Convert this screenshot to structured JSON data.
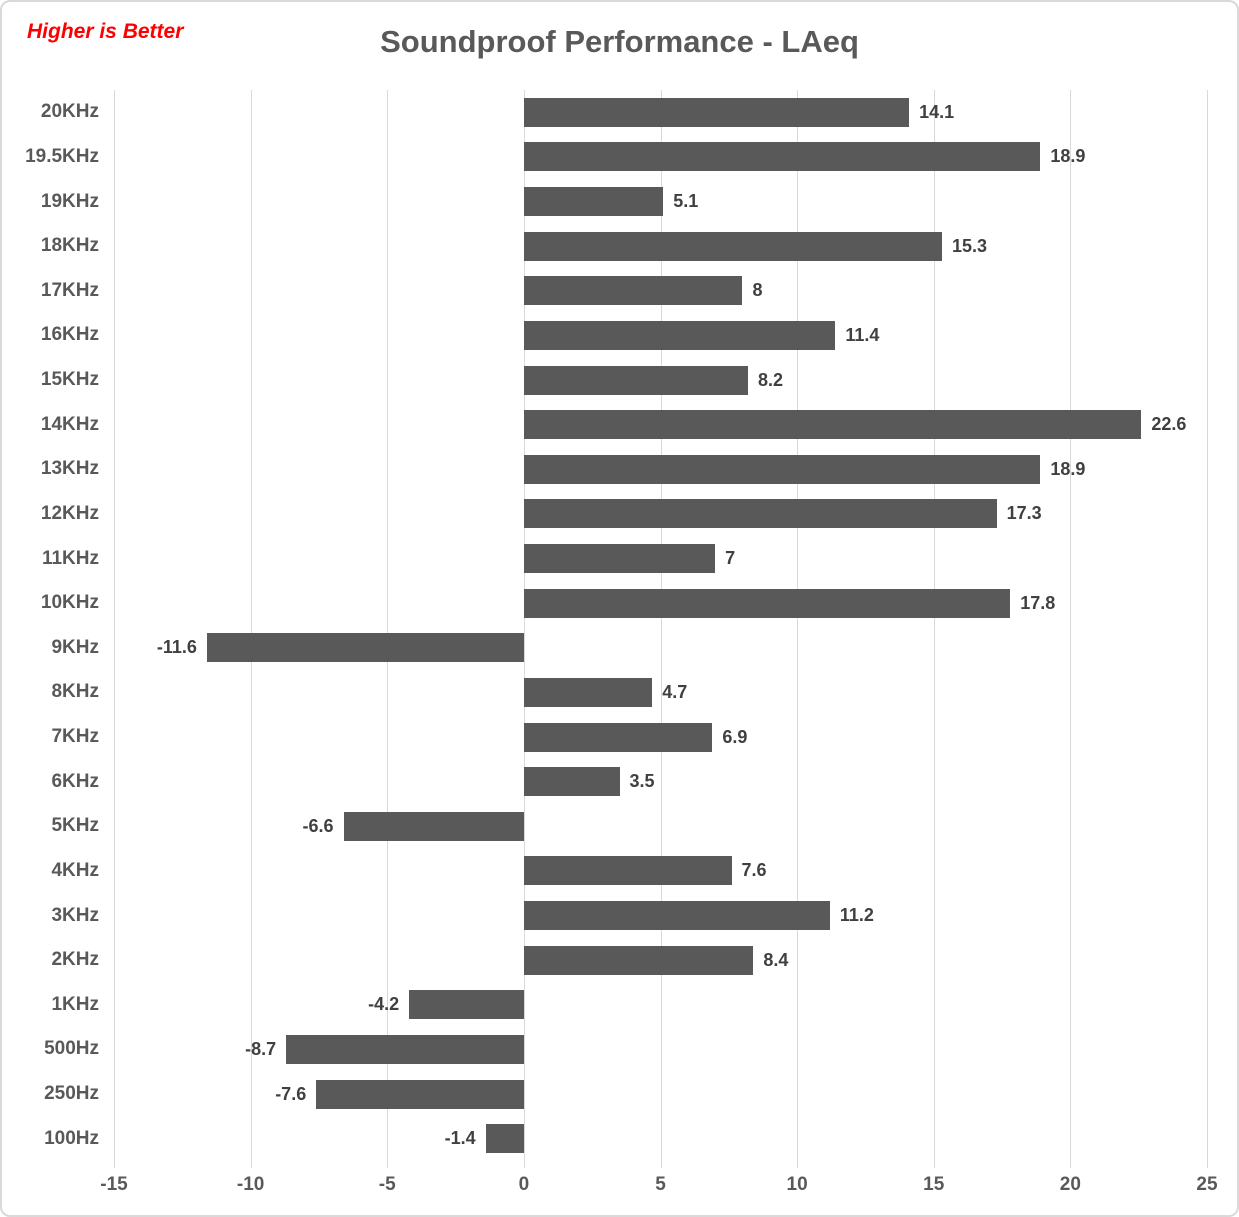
{
  "title": "Soundproof Performance - LAeq",
  "note": "Higher is Better",
  "colors": {
    "bar": "#595959",
    "gridline": "#d9d9d9",
    "title": "#595959",
    "note": "#ff0000",
    "value_label": "#404040",
    "axis_label": "#595959",
    "border": "#d9d9d9",
    "background": "#ffffff"
  },
  "chart_data": {
    "type": "bar",
    "orientation": "horizontal",
    "title": "Soundproof Performance - LAeq",
    "annotation": "Higher is Better",
    "categories": [
      "20KHz",
      "19.5KHz",
      "19KHz",
      "18KHz",
      "17KHz",
      "16KHz",
      "15KHz",
      "14KHz",
      "13KHz",
      "12KHz",
      "11KHz",
      "10KHz",
      "9KHz",
      "8KHz",
      "7KHz",
      "6KHz",
      "5KHz",
      "4KHz",
      "3KHz",
      "2KHz",
      "1KHz",
      "500Hz",
      "250Hz",
      "100Hz"
    ],
    "values": [
      14.1,
      18.9,
      5.1,
      15.3,
      8,
      11.4,
      8.2,
      22.6,
      18.9,
      17.3,
      7,
      17.8,
      -11.6,
      4.7,
      6.9,
      3.5,
      -6.6,
      7.6,
      11.2,
      8.4,
      -4.2,
      -8.7,
      -7.6,
      -1.4
    ],
    "labels": [
      "14.1",
      "18.9",
      "5.1",
      "15.3",
      "8",
      "11.4",
      "8.2",
      "22.6",
      "18.9",
      "17.3",
      "7",
      "17.8",
      "-11.6",
      "4.7",
      "6.9",
      "3.5",
      "-6.6",
      "7.6",
      "11.2",
      "8.4",
      "-4.2",
      "-8.7",
      "-7.6",
      "-1.4"
    ],
    "x_ticks": [
      -15,
      -10,
      -5,
      0,
      5,
      10,
      15,
      20,
      25
    ],
    "x_tick_labels": [
      "-15",
      "-10",
      "-5",
      "0",
      "5",
      "10",
      "15",
      "20",
      "25"
    ],
    "xlim": [
      -15,
      25
    ],
    "xlabel": "",
    "ylabel": "",
    "grid": "vertical",
    "legend": "none"
  }
}
